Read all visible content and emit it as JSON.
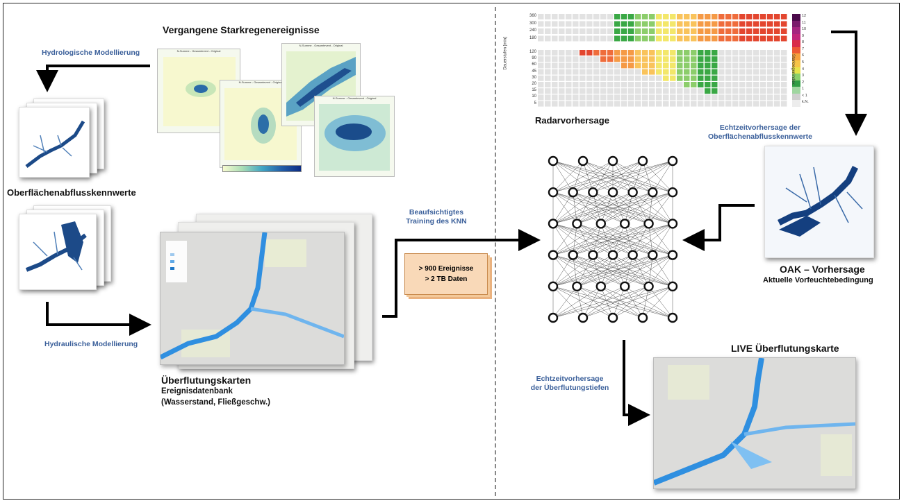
{
  "left": {
    "title_past_events": "Vergangene Starkregenereignisse",
    "hydrologic": "Hydrologische Modellierung",
    "surface_runoff": "Oberflächenabflusskennwerte",
    "hydraulic": "Hydraulische Modellierung",
    "flood_maps": "Überflutungskarten",
    "event_db": "Ereignisdatenbank",
    "db_params": "(Wasserstand, Fließgeschw.)",
    "panel_title_1": "N-Summe - Gesamtevent - Original",
    "panel_title_2": "N-Summe - Gesamtevent - Original",
    "panel_title_3": "N-Summe - Gesamtevent - Original",
    "panel_title_4": "N-Summe - Gesamtevent - Original"
  },
  "middle": {
    "training_line1": "Beaufsichtigtes",
    "training_line2": "Training des KNN",
    "note_line1": "> 900 Ereignisse",
    "note_line2": "> 2 TB Daten"
  },
  "right": {
    "radar": "Radarvorhersage",
    "realtime_runoff_line1": "Echtzeitvorhersage der",
    "realtime_runoff_line2": "Oberflächenabflusskennwerte",
    "oak_title": "OAK – Vorhersage",
    "oak_sub": "Aktuelle Vorfeuchtebedingung",
    "live_map": "LIVE Überflutungskarte",
    "realtime_flood_line1": "Echtzeitvorhersage",
    "realtime_flood_line2": "der Überflutungstiefen"
  },
  "radar_chart": {
    "ylabel": "Dauerstufen [min]",
    "yticks": [
      "360",
      "300",
      "240",
      "180",
      "120",
      "90",
      "60",
      "45",
      "30",
      "20",
      "15",
      "10",
      "5"
    ],
    "colorbar_label": "Starkregenindex",
    "colorbar_ticks": [
      "12",
      "11",
      "10",
      "9",
      "8",
      "7",
      "6",
      "5",
      "4",
      "3",
      "2",
      "1",
      "< 1",
      "k.N."
    ]
  },
  "network": {
    "layers": [
      5,
      7,
      6,
      7,
      6,
      5
    ]
  }
}
